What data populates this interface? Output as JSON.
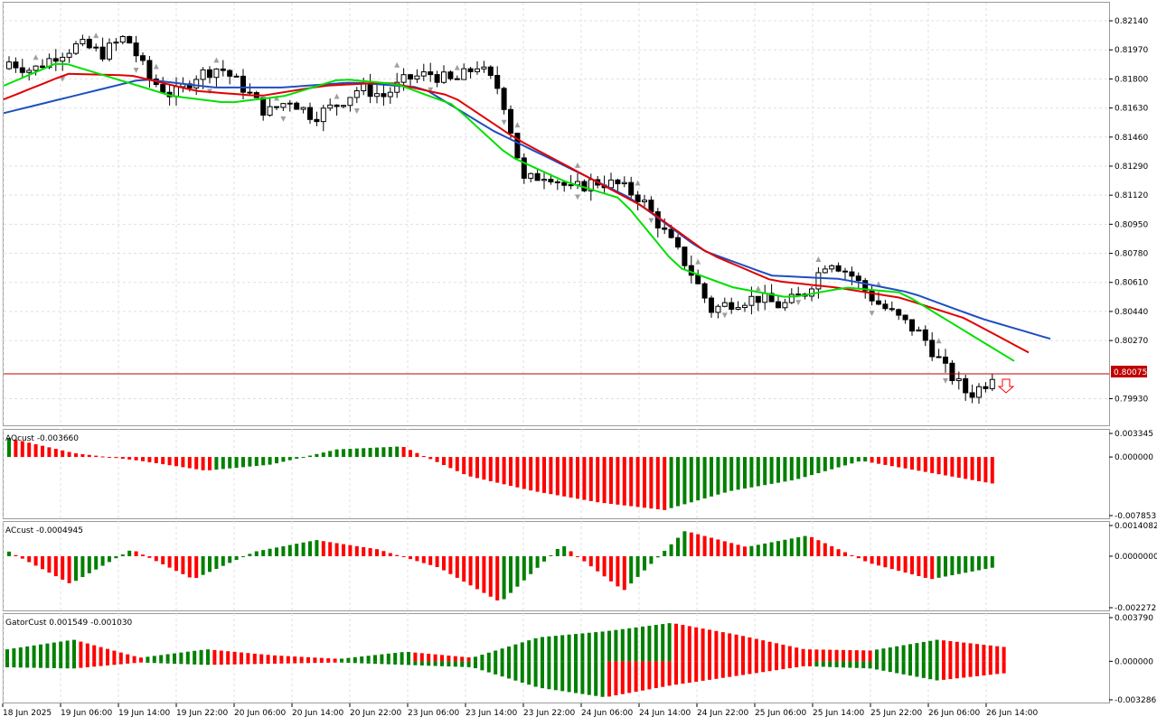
{
  "panels": {
    "main": {
      "y_ticks": [
        "0.82140",
        "0.81970",
        "0.81800",
        "0.81630",
        "0.81460",
        "0.81290",
        "0.81120",
        "0.80950",
        "0.80780",
        "0.80610",
        "0.80440",
        "0.80270",
        "0.79930"
      ],
      "current_price_label": "0.80075",
      "current_price": 0.80075,
      "ylim": [
        0.7979,
        0.8223
      ]
    },
    "ao": {
      "label": "AOcust -0.003660",
      "y_ticks": [
        "0.003345",
        "0.000000",
        "-0.007853"
      ],
      "ylim": [
        -0.007853,
        0.003345
      ]
    },
    "ac": {
      "label": "ACcust -0.0004945",
      "y_ticks": [
        "0.0014082",
        "0.0000000",
        "-0.0022727"
      ],
      "ylim": [
        -0.0022727,
        0.0014082
      ]
    },
    "gator": {
      "label": "GatorCust 0.001549 -0.001030",
      "y_ticks": [
        "0.003790",
        "0.000000",
        "-0.003286"
      ],
      "ylim": [
        -0.003286,
        0.00379
      ]
    }
  },
  "x_axis": {
    "ticks": [
      "18 Jun 2025",
      "19 Jun 06:00",
      "19 Jun 14:00",
      "19 Jun 22:00",
      "20 Jun 06:00",
      "20 Jun 14:00",
      "20 Jun 22:00",
      "23 Jun 06:00",
      "23 Jun 14:00",
      "23 Jun 22:00",
      "24 Jun 06:00",
      "24 Jun 14:00",
      "24 Jun 22:00",
      "25 Jun 06:00",
      "25 Jun 14:00",
      "25 Jun 22:00",
      "26 Jun 06:00",
      "26 Jun 14:00"
    ]
  },
  "colors": {
    "grid": "#e0e0e0",
    "border": "#9a9a9a",
    "bull_candle": "#ffffff",
    "bear_candle": "#000000",
    "alligator_lips": "#00e000",
    "alligator_teeth": "#e00000",
    "alligator_jaw": "#1f4fbf",
    "hist_up": "#008000",
    "hist_down": "#ff0000",
    "price_line": "#c00000",
    "fractal": "#a0a0a0"
  },
  "chart_data": {
    "type": "candlestick",
    "timeframe_note": "hourly candles, 18 Jun 2025 – 26 Jun 2025",
    "candles_anchor_closes": [
      0.819,
      0.8185,
      0.8194,
      0.82,
      0.8195,
      0.8205,
      0.818,
      0.817,
      0.8182,
      0.8187,
      0.8175,
      0.816,
      0.8168,
      0.8158,
      0.8165,
      0.8175,
      0.817,
      0.818,
      0.8183,
      0.8178,
      0.8188,
      0.8173,
      0.812,
      0.8125,
      0.8115,
      0.812,
      0.8118,
      0.811,
      0.809,
      0.807,
      0.8045,
      0.805,
      0.8052,
      0.8047,
      0.8055,
      0.8075,
      0.8065,
      0.805,
      0.804,
      0.803,
      0.801,
      0.7995,
      0.8005
    ],
    "last_close": 0.80075,
    "alligator": {
      "lips_anchor": [
        0.8176,
        0.819,
        0.818,
        0.817,
        0.8166,
        0.817,
        0.818,
        0.8177,
        0.8165,
        0.8135,
        0.812,
        0.811,
        0.807,
        0.8058,
        0.8052,
        0.8058,
        0.8055,
        0.8035,
        0.8015
      ],
      "teeth_anchor": [
        0.8168,
        0.8183,
        0.8182,
        0.8173,
        0.817,
        0.8176,
        0.8178,
        0.817,
        0.8145,
        0.8125,
        0.8105,
        0.8078,
        0.8062,
        0.8058,
        0.8052,
        0.804,
        0.802
      ],
      "jaw_anchor": [
        0.816,
        0.817,
        0.818,
        0.8175,
        0.8175,
        0.8178,
        0.8175,
        0.815,
        0.813,
        0.811,
        0.808,
        0.8065,
        0.8063,
        0.8055,
        0.804,
        0.8028
      ]
    },
    "ao_anchor": [
      0.0025,
      0.0005,
      -0.0005,
      -0.0018,
      -0.001,
      0.001,
      0.0014,
      -0.0025,
      -0.0045,
      -0.006,
      -0.007,
      -0.0045,
      -0.003,
      -0.0005,
      -0.002,
      -0.0035
    ],
    "ac_anchor": [
      0.0002,
      -0.0012,
      0.0003,
      -0.001,
      0.0002,
      0.0007,
      0.0003,
      -0.0005,
      -0.002,
      0.0005,
      -0.0015,
      0.0011,
      0.0004,
      0.0009,
      -0.0003,
      -0.001,
      -0.0005
    ],
    "gator_up_anchor": [
      0.001,
      0.0018,
      0.0003,
      0.001,
      0.0005,
      0.0002,
      0.0008,
      0.0003,
      0.002,
      0.0025,
      0.0032,
      0.0022,
      0.001,
      0.0009,
      0.0018,
      0.0012
    ],
    "gator_down_anchor": [
      -0.0005,
      -0.0006,
      -0.0001,
      -0.0003,
      -0.0002,
      -0.0001,
      -0.0003,
      -0.0005,
      -0.0022,
      -0.003,
      -0.002,
      -0.0012,
      -0.0004,
      -0.0006,
      -0.0016,
      -0.001
    ]
  }
}
